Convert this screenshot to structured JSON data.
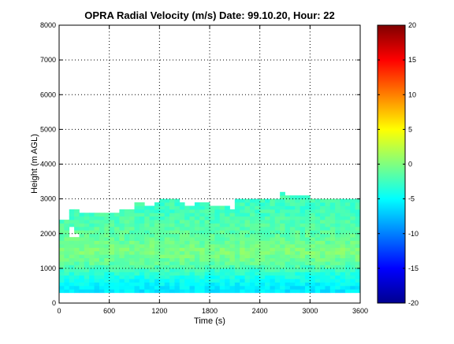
{
  "chart_data": {
    "type": "heatmap",
    "title": "OPRA Radial Velocity (m/s)  Date: 99.10.20, Hour: 22",
    "xlabel": "Time (s)",
    "ylabel": "Height (m AGL)",
    "xlim": [
      0,
      3600
    ],
    "ylim": [
      0,
      8000
    ],
    "xticks": [
      0,
      600,
      1200,
      1800,
      2400,
      3000,
      3600
    ],
    "yticks": [
      0,
      1000,
      2000,
      3000,
      4000,
      5000,
      6000,
      7000,
      8000
    ],
    "grid": true,
    "colormap": "jet",
    "colorbar": {
      "range": [
        -20,
        20
      ],
      "ticks": [
        -20,
        -15,
        -10,
        -5,
        0,
        5,
        10,
        15,
        20
      ]
    },
    "data_region": {
      "time_range_s": [
        0,
        3600
      ],
      "lowest_height_m": 300,
      "top_height_m": [
        [
          0,
          2400
        ],
        [
          100,
          2700
        ],
        [
          200,
          2550
        ],
        [
          600,
          2550
        ],
        [
          700,
          2700
        ],
        [
          850,
          2850
        ],
        [
          1000,
          2750
        ],
        [
          1100,
          2900
        ],
        [
          1200,
          3000
        ],
        [
          1400,
          2850
        ],
        [
          1500,
          2750
        ],
        [
          1600,
          2900
        ],
        [
          1800,
          2750
        ],
        [
          2000,
          2700
        ],
        [
          2100,
          3000
        ],
        [
          2600,
          3150
        ],
        [
          2700,
          3050
        ],
        [
          3000,
          3000
        ],
        [
          3600,
          3000
        ]
      ],
      "velocity_profile_mps": [
        [
          300,
          -6
        ],
        [
          600,
          -5
        ],
        [
          900,
          -3
        ],
        [
          1200,
          -1
        ],
        [
          1500,
          0
        ],
        [
          1800,
          -1
        ],
        [
          2100,
          -1.5
        ],
        [
          2400,
          -2
        ],
        [
          2700,
          -2.5
        ],
        [
          3000,
          -2.5
        ]
      ]
    }
  }
}
